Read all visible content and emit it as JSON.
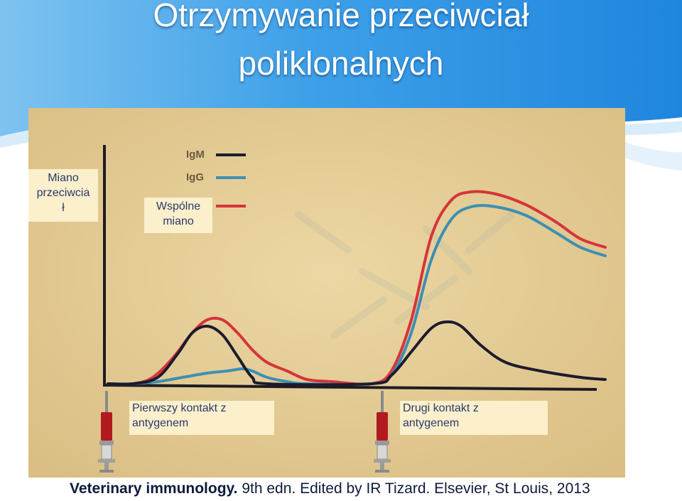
{
  "slide": {
    "title_line1": "Otrzymywanie przeciwciał",
    "title_line2": "poliklonalnych",
    "caption_bold": "Veterinary immunology.",
    "caption_rest": " 9th edn. Edited by IR Tizard. Elsevier, St Louis, 2013",
    "colors": {
      "slide_blue": "#2a8fe0",
      "title_text": "#ffffff",
      "label_box": "#fbefcc",
      "photo_paper": "#ead39b"
    }
  },
  "labels": {
    "y_axis": [
      "Miano",
      "przeciwcia",
      "ł"
    ],
    "common_titer": [
      "Wspólne",
      "miano"
    ],
    "first_contact": [
      "Pierwszy kontakt z",
      "antygenem"
    ],
    "second_contact": [
      "Drugi kontakt z",
      "antygenem"
    ]
  },
  "chart_data": {
    "type": "line",
    "title": "",
    "xlabel": "",
    "ylabel": "Miano przeciwciał",
    "xlim": [
      0,
      100
    ],
    "ylim": [
      0,
      100
    ],
    "grid": false,
    "legend": "top-left",
    "annotations": [
      "Pierwszy kontakt z antygenem",
      "Drugi kontakt z antygenem",
      "Wspólne miano"
    ],
    "series": [
      {
        "name": "IgM",
        "color": "#1c1b2e",
        "points": [
          [
            0,
            0
          ],
          [
            5,
            0
          ],
          [
            10,
            3
          ],
          [
            14,
            14
          ],
          [
            17,
            24
          ],
          [
            20,
            27
          ],
          [
            23,
            23
          ],
          [
            26,
            13
          ],
          [
            29,
            3
          ],
          [
            32,
            0
          ],
          [
            53,
            0
          ],
          [
            57,
            4
          ],
          [
            61,
            15
          ],
          [
            65,
            26
          ],
          [
            68,
            29
          ],
          [
            71,
            27
          ],
          [
            75,
            18
          ],
          [
            80,
            10
          ],
          [
            87,
            6
          ],
          [
            95,
            3
          ],
          [
            100,
            2
          ]
        ]
      },
      {
        "name": "IgG",
        "color": "#3d8fb3",
        "points": [
          [
            0,
            0
          ],
          [
            5,
            0
          ],
          [
            10,
            1
          ],
          [
            15,
            3
          ],
          [
            20,
            5
          ],
          [
            24,
            6
          ],
          [
            27,
            7
          ],
          [
            29,
            6
          ],
          [
            32,
            3
          ],
          [
            36,
            1
          ],
          [
            40,
            0
          ],
          [
            53,
            0
          ],
          [
            57,
            4
          ],
          [
            61,
            24
          ],
          [
            65,
            58
          ],
          [
            69,
            77
          ],
          [
            73,
            83
          ],
          [
            78,
            83
          ],
          [
            84,
            79
          ],
          [
            90,
            71
          ],
          [
            95,
            64
          ],
          [
            100,
            60
          ]
        ]
      },
      {
        "name": "",
        "color": "#d7343a",
        "points": [
          [
            0,
            0
          ],
          [
            5,
            0
          ],
          [
            9,
            3
          ],
          [
            13,
            12
          ],
          [
            17,
            24
          ],
          [
            20,
            30
          ],
          [
            23,
            30
          ],
          [
            26,
            24
          ],
          [
            29,
            16
          ],
          [
            32,
            10
          ],
          [
            36,
            6
          ],
          [
            40,
            2
          ],
          [
            45,
            1
          ],
          [
            53,
            0
          ],
          [
            57,
            6
          ],
          [
            61,
            30
          ],
          [
            65,
            69
          ],
          [
            69,
            86
          ],
          [
            73,
            90
          ],
          [
            78,
            89
          ],
          [
            84,
            84
          ],
          [
            90,
            76
          ],
          [
            95,
            68
          ],
          [
            100,
            64
          ]
        ]
      }
    ]
  }
}
